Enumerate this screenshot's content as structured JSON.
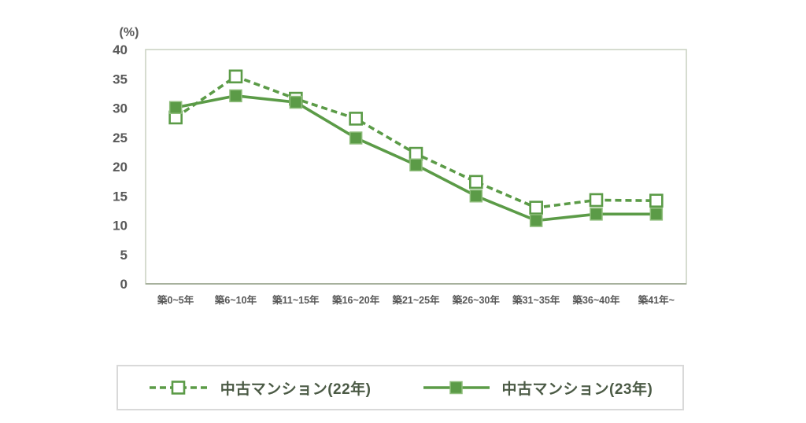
{
  "chart": {
    "accent_color": "#5b9b47",
    "accent_light": "#8fbe7c",
    "axis_text_color": "#595959",
    "plot_border_color": "#ccd4c5",
    "axis_line_color": "#a7b19d",
    "legend_text_color": "#4b5a45"
  },
  "chart_data": {
    "type": "line",
    "title": "",
    "xlabel": "",
    "ylabel": "(%)",
    "ylim": [
      0,
      40
    ],
    "yticks": [
      0,
      5,
      10,
      15,
      20,
      25,
      30,
      35,
      40
    ],
    "grid": false,
    "legend_position": "bottom",
    "categories": [
      "築0~5年",
      "築6~10年",
      "築11~15年",
      "築16~20年",
      "築21~25年",
      "築26~30年",
      "築31~35年",
      "築36~40年",
      "築41年~"
    ],
    "series": [
      {
        "name": "中古マンション(22年)",
        "line_style": "dashed",
        "marker": "open-square",
        "values": [
          28.4,
          35.4,
          31.6,
          28.2,
          22.2,
          17.4,
          13.0,
          14.3,
          14.2
        ]
      },
      {
        "name": "中古マンション(23年)",
        "line_style": "solid",
        "marker": "filled-square",
        "values": [
          30.1,
          32.1,
          31.0,
          24.9,
          20.3,
          15.0,
          10.8,
          11.9,
          11.9
        ]
      }
    ]
  }
}
